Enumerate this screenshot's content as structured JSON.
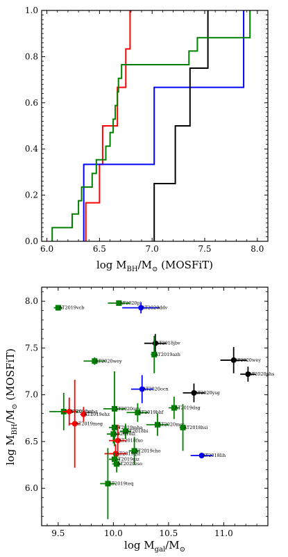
{
  "chart_data": [
    {
      "type": "line",
      "subtype": "step",
      "xlabel": "log M_BH/M_⊙ (MOSFiT)",
      "xlabel_parts": {
        "main": "log M",
        "sub1": "BH",
        "mid": "/M",
        "sub2": "⊙",
        "tail": " (MOSFiT)"
      },
      "xlim": [
        5.95,
        8.1
      ],
      "ylim": [
        0.0,
        1.0
      ],
      "xticks": [
        "6.0",
        "6.5",
        "7.0",
        "7.5",
        "8.0"
      ],
      "yticks": [
        "0.0",
        "0.2",
        "0.4",
        "0.6",
        "0.8",
        "1.0"
      ],
      "grid": false,
      "series": [
        {
          "color": "#ff0000",
          "points": [
            [
              6.37,
              0.0
            ],
            [
              6.37,
              0.167
            ],
            [
              6.5,
              0.167
            ],
            [
              6.5,
              0.333
            ],
            [
              6.53,
              0.333
            ],
            [
              6.53,
              0.5
            ],
            [
              6.67,
              0.5
            ],
            [
              6.67,
              0.667
            ],
            [
              6.75,
              0.667
            ],
            [
              6.75,
              0.833
            ],
            [
              6.79,
              0.833
            ],
            [
              6.79,
              1.0
            ]
          ]
        },
        {
          "color": "#0000ff",
          "points": [
            [
              6.35,
              0.0
            ],
            [
              6.35,
              0.333
            ],
            [
              7.02,
              0.333
            ],
            [
              7.02,
              0.667
            ],
            [
              7.87,
              0.667
            ],
            [
              7.87,
              1.0
            ]
          ]
        },
        {
          "color": "#000000",
          "points": [
            [
              7.02,
              0.0
            ],
            [
              7.02,
              0.25
            ],
            [
              7.22,
              0.25
            ],
            [
              7.22,
              0.5
            ],
            [
              7.36,
              0.5
            ],
            [
              7.36,
              0.75
            ],
            [
              7.53,
              0.75
            ],
            [
              7.53,
              1.0
            ]
          ]
        },
        {
          "color": "#008000",
          "points": [
            [
              6.05,
              0.0
            ],
            [
              6.05,
              0.059
            ],
            [
              6.24,
              0.059
            ],
            [
              6.24,
              0.118
            ],
            [
              6.3,
              0.118
            ],
            [
              6.3,
              0.176
            ],
            [
              6.33,
              0.176
            ],
            [
              6.33,
              0.235
            ],
            [
              6.43,
              0.235
            ],
            [
              6.43,
              0.294
            ],
            [
              6.47,
              0.294
            ],
            [
              6.47,
              0.353
            ],
            [
              6.56,
              0.353
            ],
            [
              6.56,
              0.412
            ],
            [
              6.6,
              0.412
            ],
            [
              6.6,
              0.471
            ],
            [
              6.63,
              0.471
            ],
            [
              6.63,
              0.529
            ],
            [
              6.65,
              0.529
            ],
            [
              6.65,
              0.588
            ],
            [
              6.67,
              0.588
            ],
            [
              6.67,
              0.647
            ],
            [
              6.68,
              0.647
            ],
            [
              6.68,
              0.706
            ],
            [
              6.71,
              0.706
            ],
            [
              6.71,
              0.765
            ],
            [
              7.35,
              0.765
            ],
            [
              7.35,
              0.824
            ],
            [
              7.43,
              0.824
            ],
            [
              7.43,
              0.882
            ],
            [
              7.93,
              0.882
            ],
            [
              7.93,
              1.0
            ]
          ]
        }
      ]
    },
    {
      "type": "scatter",
      "xlabel": "log M_gal/M_⊙",
      "xlabel_parts": {
        "main": "log M",
        "sub1": "gal",
        "mid": "/M",
        "sub2": "⊙"
      },
      "ylabel": "log M_BH/M_⊙ (MOSFiT)",
      "ylabel_parts": {
        "main": "log M",
        "sub1": "BH",
        "mid": "/M",
        "sub2": "⊙",
        "tail": " (MOSFiT)"
      },
      "xlim": [
        9.35,
        11.4
      ],
      "ylim": [
        5.6,
        8.15
      ],
      "xticks": [
        "9.5",
        "10.0",
        "10.5",
        "11.0"
      ],
      "yticks": [
        "6.0",
        "6.5",
        "7.0",
        "7.5",
        "8.0"
      ],
      "grid": false,
      "points": [
        {
          "label": "AT2020pj",
          "x": 10.05,
          "y": 7.98,
          "xerr": 0.1,
          "yerr": 0.02,
          "color": "#008000",
          "marker": "square"
        },
        {
          "label": "AT2020ddv",
          "x": 10.25,
          "y": 7.93,
          "xerr": 0.17,
          "yerr": 0.06,
          "color": "#0000ff",
          "marker": "circle"
        },
        {
          "label": "AT2019vcb",
          "x": 9.5,
          "y": 7.93,
          "xerr": 0.04,
          "yerr": 0.03,
          "color": "#008000",
          "marker": "square"
        },
        {
          "label": "AT2018jbv",
          "x": 10.38,
          "y": 7.55,
          "xerr": 0.1,
          "yerr": 0.1,
          "color": "#000000",
          "marker": "circle"
        },
        {
          "label": "AT2019azh",
          "x": 10.37,
          "y": 7.43,
          "xerr": 0.03,
          "yerr": 0.2,
          "color": "#008000",
          "marker": "square"
        },
        {
          "label": "AT2020wey",
          "x": 9.83,
          "y": 7.36,
          "xerr": 0.1,
          "yerr": 0.04,
          "color": "#008000",
          "marker": "square"
        },
        {
          "label": "AT2020wey",
          "x": 11.09,
          "y": 7.37,
          "xerr": 0.12,
          "yerr": 0.14,
          "color": "#000000",
          "marker": "circle"
        },
        {
          "label": "AT2020nhs",
          "x": 11.22,
          "y": 7.22,
          "xerr": 0.07,
          "yerr": 0.08,
          "color": "#000000",
          "marker": "circle"
        },
        {
          "label": "AT2020ocn",
          "x": 10.26,
          "y": 7.06,
          "xerr": 0.1,
          "yerr": 0.15,
          "color": "#0000ff",
          "marker": "circle"
        },
        {
          "label": "AT2020ysg",
          "x": 10.73,
          "y": 7.02,
          "xerr": 0.1,
          "yerr": 0.1,
          "color": "#000000",
          "marker": "circle"
        },
        {
          "label": "AT2019dsg",
          "x": 10.55,
          "y": 6.86,
          "xerr": 0.05,
          "yerr": 0.12,
          "color": "#008000",
          "marker": "square"
        },
        {
          "label": "AT2020opy",
          "x": 10.01,
          "y": 6.85,
          "xerr": 0.1,
          "yerr": 0.4,
          "color": "#008000",
          "marker": "square"
        },
        {
          "label": "AT2019bhf",
          "x": 10.22,
          "y": 6.81,
          "xerr": 0.1,
          "yerr": 0.1,
          "color": "#008000",
          "marker": "square"
        },
        {
          "label": "AT2020mot",
          "x": 10.4,
          "y": 6.68,
          "xerr": 0.1,
          "yerr": 0.12,
          "color": "#008000",
          "marker": "square"
        },
        {
          "label": "AT2018hsi",
          "x": 10.63,
          "y": 6.65,
          "xerr": 0.03,
          "yerr": 0.25,
          "color": "#008000",
          "marker": "square"
        },
        {
          "label": "AT2020mbq",
          "x": 9.55,
          "y": 6.82,
          "xerr": 0.13,
          "yerr": 0.2,
          "color": "#008000",
          "marker": "square"
        },
        {
          "label": "AT2020mbq",
          "x": 9.6,
          "y": 6.82,
          "xerr": 0.06,
          "yerr": 0.15,
          "color": "#ff0000",
          "marker": "circle"
        },
        {
          "label": "AT2019ehz",
          "x": 9.73,
          "y": 6.79,
          "xerr": 0.03,
          "yerr": 0.08,
          "color": "#ff0000",
          "marker": "circle"
        },
        {
          "label": "AT2019meg",
          "x": 9.65,
          "y": 6.69,
          "xerr": 0.05,
          "yerr": 0.47,
          "color": "#ff0000",
          "marker": "circle"
        },
        {
          "label": "AT2019mha",
          "x": 10.01,
          "y": 6.65,
          "xerr": 0.05,
          "yerr": 0.12,
          "color": "#008000",
          "marker": "square"
        },
        {
          "label": "AT2018bi",
          "x": 10.11,
          "y": 6.61,
          "xerr": 0.05,
          "yerr": 0.08,
          "color": "#008000",
          "marker": "square"
        },
        {
          "label": "AT2018iz",
          "x": 10.0,
          "y": 6.58,
          "xerr": 0.06,
          "yerr": 0.1,
          "color": "#008000",
          "marker": "square"
        },
        {
          "label": "AT2018fxo",
          "x": 10.04,
          "y": 6.51,
          "xerr": 0.08,
          "yerr": 0.17,
          "color": "#ff0000",
          "marker": "circle"
        },
        {
          "label": "AT2019cho",
          "x": 10.19,
          "y": 6.4,
          "xerr": 0.05,
          "yerr": 0.15,
          "color": "#008000",
          "marker": "square"
        },
        {
          "label": "AT2019qiz",
          "x": 10.02,
          "y": 6.37,
          "xerr": 0.1,
          "yerr": 0.1,
          "color": "#ff0000",
          "marker": "circle"
        },
        {
          "label": "AT2019qiz",
          "x": 10.01,
          "y": 6.31,
          "xerr": 0.05,
          "yerr": 0.07,
          "color": "#008000",
          "marker": "square"
        },
        {
          "label": "AT2020zso",
          "x": 10.03,
          "y": 6.26,
          "xerr": 0.04,
          "yerr": 0.09,
          "color": "#008000",
          "marker": "square"
        },
        {
          "label": "AT2018lih",
          "x": 10.8,
          "y": 6.35,
          "xerr": 0.1,
          "yerr": 0.03,
          "color": "#0000ff",
          "marker": "circle"
        },
        {
          "label": "AT2019teq",
          "x": 9.95,
          "y": 6.05,
          "xerr": 0.07,
          "yerr": 0.38,
          "color": "#008000",
          "marker": "square"
        }
      ]
    }
  ]
}
